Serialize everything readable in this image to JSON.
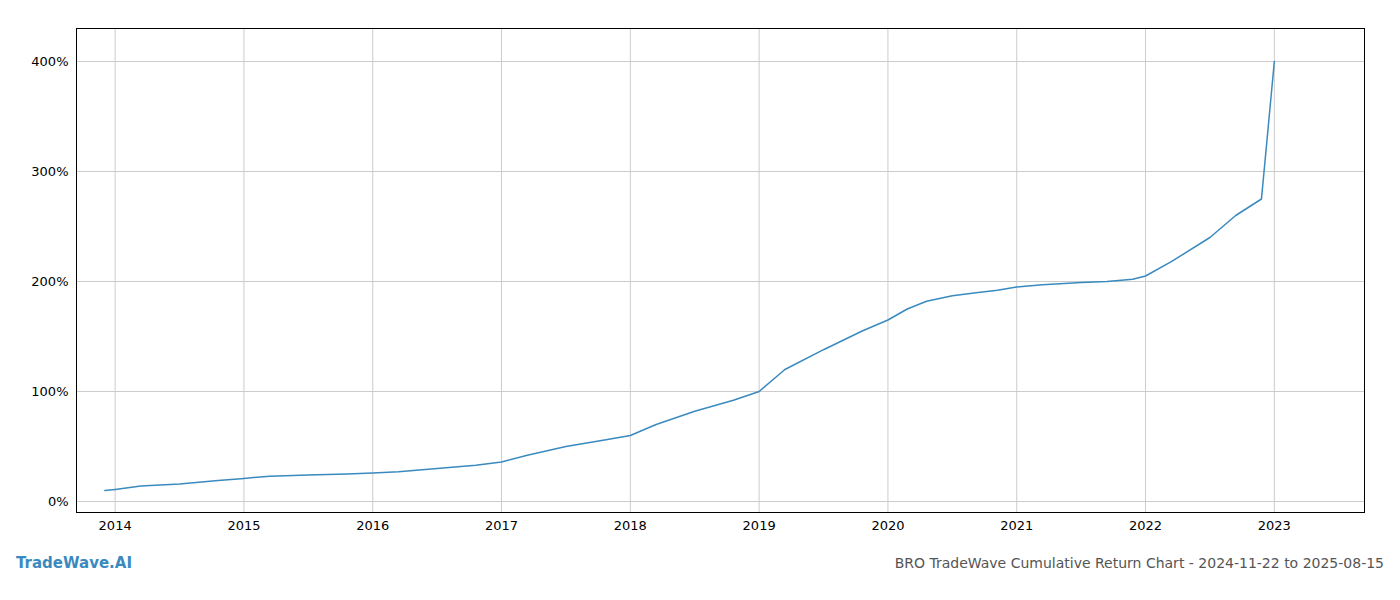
{
  "chart_data": {
    "type": "line",
    "title": "BRO TradeWave Cumulative Return Chart - 2024-11-22 to 2025-08-15",
    "annotations": [
      "TradeWave.AI"
    ],
    "x": [
      2013.92,
      2014.0,
      2014.2,
      2014.5,
      2014.8,
      2015.0,
      2015.2,
      2015.5,
      2015.8,
      2016.0,
      2016.2,
      2016.5,
      2016.8,
      2017.0,
      2017.2,
      2017.5,
      2017.8,
      2018.0,
      2018.2,
      2018.5,
      2018.8,
      2019.0,
      2019.2,
      2019.5,
      2019.8,
      2020.0,
      2020.15,
      2020.3,
      2020.5,
      2020.7,
      2020.85,
      2021.0,
      2021.2,
      2021.5,
      2021.7,
      2021.9,
      2022.0,
      2022.2,
      2022.5,
      2022.7,
      2022.9,
      2023.0
    ],
    "values": [
      10,
      11,
      14,
      16,
      19,
      21,
      23,
      24,
      25,
      26,
      27,
      30,
      33,
      36,
      42,
      50,
      56,
      60,
      70,
      82,
      92,
      100,
      120,
      138,
      155,
      165,
      175,
      182,
      187,
      190,
      192,
      195,
      197,
      199,
      200,
      202,
      205,
      218,
      240,
      260,
      275,
      400
    ],
    "color": "#3a8abf",
    "xlim": [
      2013.7,
      2023.7
    ],
    "xticks": [
      2014,
      2015,
      2016,
      2017,
      2018,
      2019,
      2020,
      2021,
      2022,
      2023
    ],
    "ylim": [
      -10,
      430
    ],
    "yticks": [
      {
        "value": 0,
        "label": "0%"
      },
      {
        "value": 100,
        "label": "100%"
      },
      {
        "value": 200,
        "label": "200%"
      },
      {
        "value": 300,
        "label": "300%"
      },
      {
        "value": 400,
        "label": "400%"
      }
    ],
    "grid": true
  }
}
